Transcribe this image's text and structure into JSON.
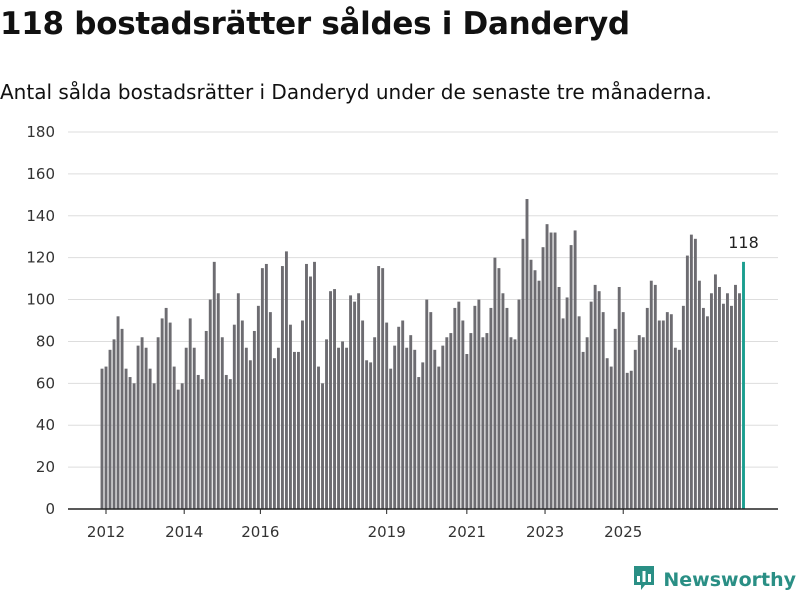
{
  "header": {
    "title": "118 bostadsrätter såldes i Danderyd",
    "subtitle": "Antal sålda bostadsrätter i Danderyd under de senaste tre månaderna."
  },
  "brand": {
    "name": "Newsworthy",
    "logo_icon": "newsworthy-bar-chart-icon",
    "color": "#2a8f85"
  },
  "colors": {
    "bar": "#6d6c71",
    "highlight": "#1a9e8f",
    "grid": "#dddddd",
    "axis": "#222222"
  },
  "chart_data": {
    "type": "bar",
    "title": "118 bostadsrätter såldes i Danderyd",
    "subtitle": "Antal sålda bostadsrätter i Danderyd under de senaste tre månaderna.",
    "xlabel": "",
    "ylabel": "",
    "ylim": [
      0,
      180
    ],
    "y_ticks": [
      0,
      20,
      40,
      60,
      80,
      100,
      120,
      140,
      160,
      180
    ],
    "x_ticks": [
      "2012",
      "2014",
      "2016",
      "2019",
      "2021",
      "2023",
      "2025"
    ],
    "grid": true,
    "highlight_label": "118",
    "series": [
      {
        "values": [
          67,
          68,
          76,
          81,
          92,
          86,
          67,
          63,
          60,
          78,
          82,
          77,
          67,
          60,
          82,
          91,
          96,
          89,
          68,
          57,
          60,
          77,
          91,
          77,
          64,
          62,
          85,
          100,
          118,
          103,
          82,
          64,
          62,
          88,
          103,
          90,
          77,
          71,
          85,
          97,
          115,
          117,
          94,
          72,
          77,
          116,
          123,
          88,
          75,
          75,
          90,
          117,
          111,
          118,
          68,
          60,
          81,
          104,
          105,
          77,
          80,
          77,
          102,
          99,
          103,
          90,
          71,
          70,
          82,
          116,
          115,
          89,
          67,
          78,
          87,
          90,
          77,
          83,
          76,
          63,
          70,
          100,
          94,
          76,
          68,
          78,
          82,
          84,
          96,
          99,
          90,
          74,
          84,
          97,
          100,
          82,
          84,
          96,
          120,
          115,
          103,
          96,
          82,
          81,
          100,
          129,
          148,
          119,
          114,
          109,
          125,
          136,
          132,
          132,
          106,
          91,
          101,
          126,
          133,
          92,
          75,
          82,
          99,
          107,
          104,
          94,
          72,
          68,
          86,
          106,
          94,
          65,
          66,
          76,
          83,
          82,
          96,
          109,
          107,
          90,
          90,
          94,
          93,
          77,
          76,
          97,
          121,
          131,
          129,
          109,
          96,
          92,
          103,
          112,
          106,
          98,
          103,
          97,
          107,
          103,
          118
        ]
      }
    ]
  }
}
